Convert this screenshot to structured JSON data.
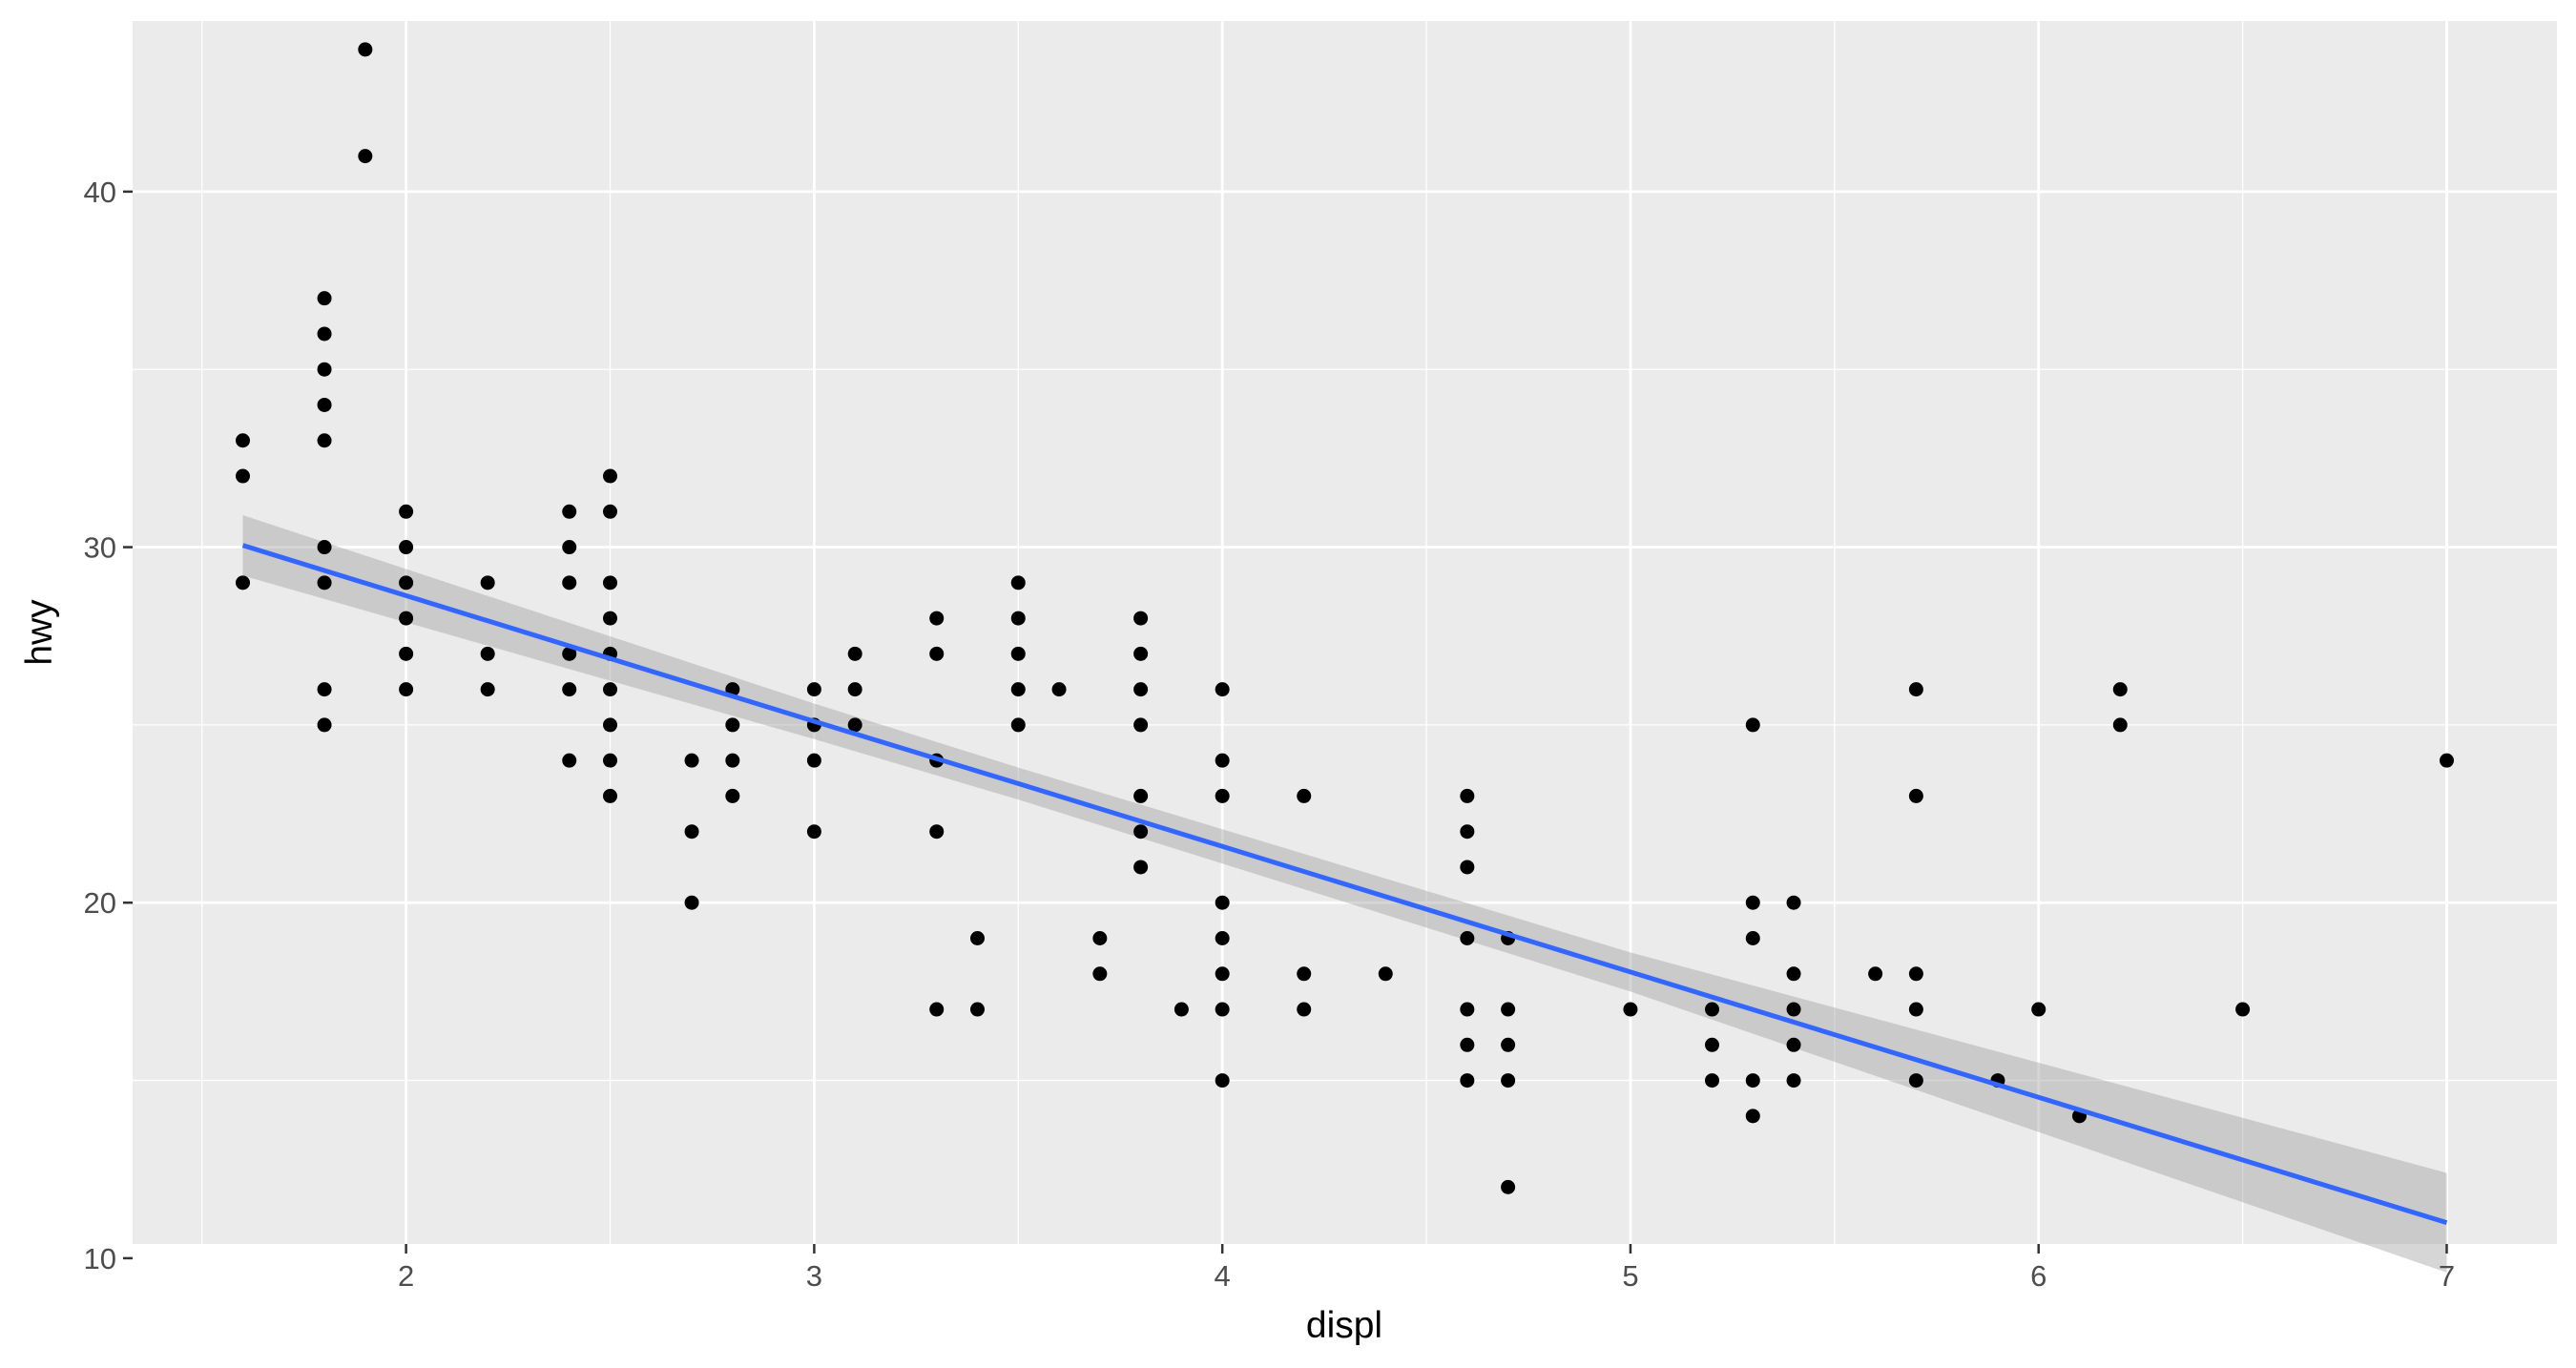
{
  "chart_data": {
    "type": "scatter",
    "title": "",
    "xlabel": "displ",
    "ylabel": "hwy",
    "xlim": [
      1.33,
      7.27
    ],
    "ylim": [
      10.4,
      44.8
    ],
    "x_ticks": [
      2,
      3,
      4,
      5,
      6,
      7
    ],
    "y_ticks": [
      10,
      20,
      30,
      40
    ],
    "x_tick_labels": [
      "2",
      "3",
      "4",
      "5",
      "6",
      "7"
    ],
    "y_tick_labels": [
      "10",
      "20",
      "30",
      "40"
    ],
    "grid": true,
    "legend": "none",
    "colors": {
      "panel": "#EBEBEB",
      "grid_major": "#FFFFFF",
      "points": "#000000",
      "fit_line": "#3366FF",
      "ribbon": "#999999"
    },
    "points": [
      {
        "x": 1.6,
        "y": 33
      },
      {
        "x": 1.6,
        "y": 32
      },
      {
        "x": 1.6,
        "y": 29
      },
      {
        "x": 1.8,
        "y": 37
      },
      {
        "x": 1.8,
        "y": 36
      },
      {
        "x": 1.8,
        "y": 35
      },
      {
        "x": 1.8,
        "y": 34
      },
      {
        "x": 1.8,
        "y": 33
      },
      {
        "x": 1.8,
        "y": 30
      },
      {
        "x": 1.8,
        "y": 29
      },
      {
        "x": 1.8,
        "y": 26
      },
      {
        "x": 1.8,
        "y": 25
      },
      {
        "x": 1.9,
        "y": 44
      },
      {
        "x": 1.9,
        "y": 41
      },
      {
        "x": 2.0,
        "y": 31
      },
      {
        "x": 2.0,
        "y": 30
      },
      {
        "x": 2.0,
        "y": 29
      },
      {
        "x": 2.0,
        "y": 28
      },
      {
        "x": 2.0,
        "y": 27
      },
      {
        "x": 2.0,
        "y": 26
      },
      {
        "x": 2.2,
        "y": 29
      },
      {
        "x": 2.2,
        "y": 27
      },
      {
        "x": 2.2,
        "y": 26
      },
      {
        "x": 2.4,
        "y": 31
      },
      {
        "x": 2.4,
        "y": 30
      },
      {
        "x": 2.4,
        "y": 29
      },
      {
        "x": 2.4,
        "y": 27
      },
      {
        "x": 2.4,
        "y": 26
      },
      {
        "x": 2.4,
        "y": 24
      },
      {
        "x": 2.5,
        "y": 32
      },
      {
        "x": 2.5,
        "y": 31
      },
      {
        "x": 2.5,
        "y": 29
      },
      {
        "x": 2.5,
        "y": 28
      },
      {
        "x": 2.5,
        "y": 27
      },
      {
        "x": 2.5,
        "y": 26
      },
      {
        "x": 2.5,
        "y": 25
      },
      {
        "x": 2.5,
        "y": 24
      },
      {
        "x": 2.5,
        "y": 23
      },
      {
        "x": 2.7,
        "y": 24
      },
      {
        "x": 2.7,
        "y": 22
      },
      {
        "x": 2.7,
        "y": 20
      },
      {
        "x": 2.8,
        "y": 26
      },
      {
        "x": 2.8,
        "y": 25
      },
      {
        "x": 2.8,
        "y": 24
      },
      {
        "x": 2.8,
        "y": 23
      },
      {
        "x": 3.0,
        "y": 26
      },
      {
        "x": 3.0,
        "y": 25
      },
      {
        "x": 3.0,
        "y": 24
      },
      {
        "x": 3.0,
        "y": 22
      },
      {
        "x": 3.1,
        "y": 27
      },
      {
        "x": 3.1,
        "y": 26
      },
      {
        "x": 3.1,
        "y": 25
      },
      {
        "x": 3.3,
        "y": 28
      },
      {
        "x": 3.3,
        "y": 27
      },
      {
        "x": 3.3,
        "y": 24
      },
      {
        "x": 3.3,
        "y": 22
      },
      {
        "x": 3.3,
        "y": 17
      },
      {
        "x": 3.4,
        "y": 19
      },
      {
        "x": 3.4,
        "y": 17
      },
      {
        "x": 3.5,
        "y": 29
      },
      {
        "x": 3.5,
        "y": 28
      },
      {
        "x": 3.5,
        "y": 27
      },
      {
        "x": 3.5,
        "y": 26
      },
      {
        "x": 3.5,
        "y": 25
      },
      {
        "x": 3.6,
        "y": 26
      },
      {
        "x": 3.7,
        "y": 19
      },
      {
        "x": 3.7,
        "y": 18
      },
      {
        "x": 3.8,
        "y": 28
      },
      {
        "x": 3.8,
        "y": 27
      },
      {
        "x": 3.8,
        "y": 26
      },
      {
        "x": 3.8,
        "y": 25
      },
      {
        "x": 3.8,
        "y": 23
      },
      {
        "x": 3.8,
        "y": 22
      },
      {
        "x": 3.8,
        "y": 21
      },
      {
        "x": 3.9,
        "y": 17
      },
      {
        "x": 4.0,
        "y": 26
      },
      {
        "x": 4.0,
        "y": 24
      },
      {
        "x": 4.0,
        "y": 23
      },
      {
        "x": 4.0,
        "y": 20
      },
      {
        "x": 4.0,
        "y": 19
      },
      {
        "x": 4.0,
        "y": 18
      },
      {
        "x": 4.0,
        "y": 17
      },
      {
        "x": 4.0,
        "y": 15
      },
      {
        "x": 4.2,
        "y": 23
      },
      {
        "x": 4.2,
        "y": 18
      },
      {
        "x": 4.2,
        "y": 17
      },
      {
        "x": 4.4,
        "y": 18
      },
      {
        "x": 4.6,
        "y": 23
      },
      {
        "x": 4.6,
        "y": 22
      },
      {
        "x": 4.6,
        "y": 21
      },
      {
        "x": 4.6,
        "y": 19
      },
      {
        "x": 4.6,
        "y": 17
      },
      {
        "x": 4.6,
        "y": 16
      },
      {
        "x": 4.6,
        "y": 15
      },
      {
        "x": 4.7,
        "y": 19
      },
      {
        "x": 4.7,
        "y": 17
      },
      {
        "x": 4.7,
        "y": 16
      },
      {
        "x": 4.7,
        "y": 15
      },
      {
        "x": 4.7,
        "y": 12
      },
      {
        "x": 5.0,
        "y": 17
      },
      {
        "x": 5.2,
        "y": 17
      },
      {
        "x": 5.2,
        "y": 16
      },
      {
        "x": 5.2,
        "y": 15
      },
      {
        "x": 5.3,
        "y": 25
      },
      {
        "x": 5.3,
        "y": 20
      },
      {
        "x": 5.3,
        "y": 19
      },
      {
        "x": 5.3,
        "y": 15
      },
      {
        "x": 5.3,
        "y": 14
      },
      {
        "x": 5.4,
        "y": 20
      },
      {
        "x": 5.4,
        "y": 18
      },
      {
        "x": 5.4,
        "y": 17
      },
      {
        "x": 5.4,
        "y": 16
      },
      {
        "x": 5.4,
        "y": 15
      },
      {
        "x": 5.6,
        "y": 18
      },
      {
        "x": 5.7,
        "y": 26
      },
      {
        "x": 5.7,
        "y": 23
      },
      {
        "x": 5.7,
        "y": 18
      },
      {
        "x": 5.7,
        "y": 17
      },
      {
        "x": 5.7,
        "y": 15
      },
      {
        "x": 5.9,
        "y": 15
      },
      {
        "x": 6.0,
        "y": 17
      },
      {
        "x": 6.1,
        "y": 14
      },
      {
        "x": 6.2,
        "y": 26
      },
      {
        "x": 6.2,
        "y": 25
      },
      {
        "x": 6.5,
        "y": 17
      },
      {
        "x": 7.0,
        "y": 24
      }
    ],
    "fit_line": [
      {
        "x": 1.6,
        "y": 30.05,
        "lower": 29.2,
        "upper": 30.9
      },
      {
        "x": 3.0,
        "y": 25.1,
        "lower": 24.6,
        "upper": 25.6
      },
      {
        "x": 3.5,
        "y": 23.35,
        "lower": 22.9,
        "upper": 23.8
      },
      {
        "x": 5.0,
        "y": 18.05,
        "lower": 17.5,
        "upper": 18.6
      },
      {
        "x": 7.0,
        "y": 11.0,
        "lower": 9.6,
        "upper": 12.4
      }
    ]
  }
}
